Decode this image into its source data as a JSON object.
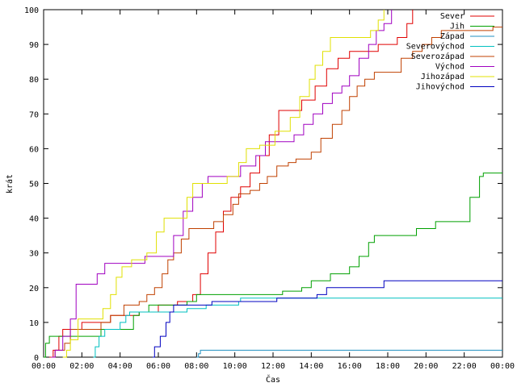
{
  "chart_data": {
    "type": "line",
    "xlabel": "Čas",
    "ylabel": "krát",
    "xlim": [
      0,
      24
    ],
    "ylim": [
      0,
      100
    ],
    "x_ticks": [
      "00:00",
      "02:00",
      "04:00",
      "06:00",
      "08:00",
      "10:00",
      "12:00",
      "14:00",
      "16:00",
      "18:00",
      "20:00",
      "22:00",
      "00:00"
    ],
    "y_ticks": [
      "0",
      "10",
      "20",
      "30",
      "40",
      "50",
      "60",
      "70",
      "80",
      "90",
      "100"
    ],
    "legend_position": "top-right",
    "grid": false,
    "series": [
      {
        "name": "Sever",
        "color": "#e00000",
        "points": [
          [
            0.3,
            0
          ],
          [
            0.5,
            2
          ],
          [
            0.8,
            6
          ],
          [
            1.0,
            8
          ],
          [
            2.0,
            10
          ],
          [
            3.5,
            12
          ],
          [
            5.0,
            13
          ],
          [
            6.0,
            15
          ],
          [
            7.0,
            16
          ],
          [
            7.8,
            18
          ],
          [
            8.2,
            24
          ],
          [
            8.6,
            30
          ],
          [
            9.0,
            36
          ],
          [
            9.4,
            42
          ],
          [
            9.8,
            46
          ],
          [
            10.3,
            49
          ],
          [
            10.8,
            53
          ],
          [
            11.3,
            58
          ],
          [
            11.8,
            64
          ],
          [
            12.3,
            71
          ],
          [
            13.0,
            71
          ],
          [
            13.5,
            74
          ],
          [
            14.2,
            78
          ],
          [
            14.8,
            83
          ],
          [
            15.4,
            86
          ],
          [
            16.0,
            88
          ],
          [
            17.0,
            88
          ],
          [
            17.5,
            90
          ],
          [
            18.5,
            92
          ],
          [
            19.0,
            96
          ],
          [
            19.3,
            100
          ]
        ]
      },
      {
        "name": "Jih",
        "color": "#00a000",
        "points": [
          [
            0,
            0
          ],
          [
            0.1,
            4
          ],
          [
            0.3,
            6
          ],
          [
            2.5,
            6
          ],
          [
            3.0,
            8
          ],
          [
            4.5,
            8
          ],
          [
            4.7,
            12
          ],
          [
            5.0,
            13
          ],
          [
            5.5,
            15
          ],
          [
            6.5,
            15
          ],
          [
            7.5,
            16
          ],
          [
            8.0,
            18
          ],
          [
            12.0,
            18
          ],
          [
            12.5,
            19
          ],
          [
            13.5,
            20
          ],
          [
            14.0,
            22
          ],
          [
            15.0,
            24
          ],
          [
            16.0,
            26
          ],
          [
            16.5,
            29
          ],
          [
            17.0,
            33
          ],
          [
            17.3,
            35
          ],
          [
            19.0,
            35
          ],
          [
            19.5,
            37
          ],
          [
            20.5,
            39
          ],
          [
            22.0,
            39
          ],
          [
            22.3,
            46
          ],
          [
            22.8,
            52
          ],
          [
            23.0,
            53
          ],
          [
            24.0,
            53
          ]
        ]
      },
      {
        "name": "Západ",
        "color": "#2090c0",
        "points": [
          [
            8.0,
            0
          ],
          [
            8.1,
            1
          ],
          [
            8.2,
            2
          ],
          [
            24.0,
            2
          ]
        ]
      },
      {
        "name": "Severovýchod",
        "color": "#00c0c0",
        "points": [
          [
            2.6,
            0
          ],
          [
            2.7,
            3
          ],
          [
            2.9,
            6
          ],
          [
            3.2,
            8
          ],
          [
            4.0,
            10
          ],
          [
            4.3,
            12
          ],
          [
            4.5,
            13
          ],
          [
            7.0,
            13
          ],
          [
            7.5,
            14
          ],
          [
            8.5,
            15
          ],
          [
            10.0,
            15
          ],
          [
            10.2,
            16
          ],
          [
            10.3,
            17
          ],
          [
            24.0,
            17
          ]
        ]
      },
      {
        "name": "Severozápad",
        "color": "#c04000",
        "points": [
          [
            0.4,
            0
          ],
          [
            0.6,
            2
          ],
          [
            1.1,
            4
          ],
          [
            1.4,
            8
          ],
          [
            2.5,
            8
          ],
          [
            3.0,
            10
          ],
          [
            3.5,
            12
          ],
          [
            4.2,
            15
          ],
          [
            5.0,
            16
          ],
          [
            5.4,
            18
          ],
          [
            5.8,
            20
          ],
          [
            6.2,
            24
          ],
          [
            6.5,
            28
          ],
          [
            6.8,
            30
          ],
          [
            7.2,
            34
          ],
          [
            7.6,
            37
          ],
          [
            8.3,
            37
          ],
          [
            8.9,
            39
          ],
          [
            9.4,
            41
          ],
          [
            9.9,
            44
          ],
          [
            10.2,
            47
          ],
          [
            10.8,
            48
          ],
          [
            11.3,
            50
          ],
          [
            11.7,
            52
          ],
          [
            12.2,
            55
          ],
          [
            12.8,
            56
          ],
          [
            13.2,
            57
          ],
          [
            14.0,
            59
          ],
          [
            14.5,
            63
          ],
          [
            15.1,
            67
          ],
          [
            15.6,
            71
          ],
          [
            16.0,
            75
          ],
          [
            16.4,
            78
          ],
          [
            16.8,
            80
          ],
          [
            17.3,
            82
          ],
          [
            18.2,
            82
          ],
          [
            18.7,
            86
          ],
          [
            19.3,
            88
          ],
          [
            19.8,
            90
          ],
          [
            20.3,
            92
          ],
          [
            20.8,
            94
          ],
          [
            23.0,
            94
          ],
          [
            23.5,
            95
          ],
          [
            24.0,
            95
          ]
        ]
      },
      {
        "name": "Východ",
        "color": "#a000c0",
        "points": [
          [
            0.4,
            0
          ],
          [
            0.6,
            2
          ],
          [
            1.0,
            6
          ],
          [
            1.4,
            11
          ],
          [
            1.7,
            21
          ],
          [
            2.3,
            21
          ],
          [
            2.8,
            24
          ],
          [
            3.2,
            27
          ],
          [
            5.0,
            27
          ],
          [
            5.3,
            29
          ],
          [
            6.3,
            29
          ],
          [
            6.8,
            35
          ],
          [
            7.3,
            42
          ],
          [
            7.8,
            46
          ],
          [
            8.3,
            50
          ],
          [
            8.6,
            52
          ],
          [
            9.5,
            52
          ],
          [
            10.3,
            55
          ],
          [
            11.1,
            58
          ],
          [
            11.6,
            62
          ],
          [
            12.5,
            62
          ],
          [
            13.1,
            64
          ],
          [
            13.6,
            67
          ],
          [
            14.1,
            70
          ],
          [
            14.6,
            73
          ],
          [
            15.1,
            76
          ],
          [
            15.6,
            78
          ],
          [
            16.0,
            81
          ],
          [
            16.5,
            86
          ],
          [
            17.0,
            90
          ],
          [
            17.4,
            94
          ],
          [
            17.8,
            96
          ],
          [
            18.2,
            100
          ]
        ]
      },
      {
        "name": "Jihozápad",
        "color": "#e0e000",
        "points": [
          [
            1.0,
            0
          ],
          [
            1.2,
            2
          ],
          [
            1.4,
            5
          ],
          [
            1.8,
            11
          ],
          [
            2.7,
            11
          ],
          [
            3.1,
            14
          ],
          [
            3.5,
            18
          ],
          [
            3.8,
            23
          ],
          [
            4.1,
            26
          ],
          [
            4.6,
            28
          ],
          [
            5.4,
            30
          ],
          [
            5.9,
            36
          ],
          [
            6.3,
            40
          ],
          [
            7.1,
            40
          ],
          [
            7.5,
            46
          ],
          [
            7.8,
            50
          ],
          [
            9.2,
            50
          ],
          [
            9.6,
            52
          ],
          [
            10.2,
            56
          ],
          [
            10.6,
            60
          ],
          [
            11.3,
            61
          ],
          [
            12.1,
            65
          ],
          [
            12.9,
            69
          ],
          [
            13.4,
            75
          ],
          [
            13.9,
            80
          ],
          [
            14.2,
            84
          ],
          [
            14.6,
            88
          ],
          [
            15.0,
            92
          ],
          [
            16.7,
            92
          ],
          [
            17.1,
            94
          ],
          [
            17.5,
            97
          ],
          [
            17.8,
            100
          ]
        ]
      },
      {
        "name": "Jihovýchod",
        "color": "#0000c0",
        "points": [
          [
            5.7,
            0
          ],
          [
            5.8,
            3
          ],
          [
            6.1,
            6
          ],
          [
            6.4,
            10
          ],
          [
            6.6,
            13
          ],
          [
            6.8,
            15
          ],
          [
            8.5,
            15
          ],
          [
            8.8,
            16
          ],
          [
            11.9,
            16
          ],
          [
            12.2,
            17
          ],
          [
            14.3,
            18
          ],
          [
            14.8,
            20
          ],
          [
            17.6,
            20
          ],
          [
            17.8,
            22
          ],
          [
            24.0,
            22
          ]
        ]
      }
    ]
  }
}
